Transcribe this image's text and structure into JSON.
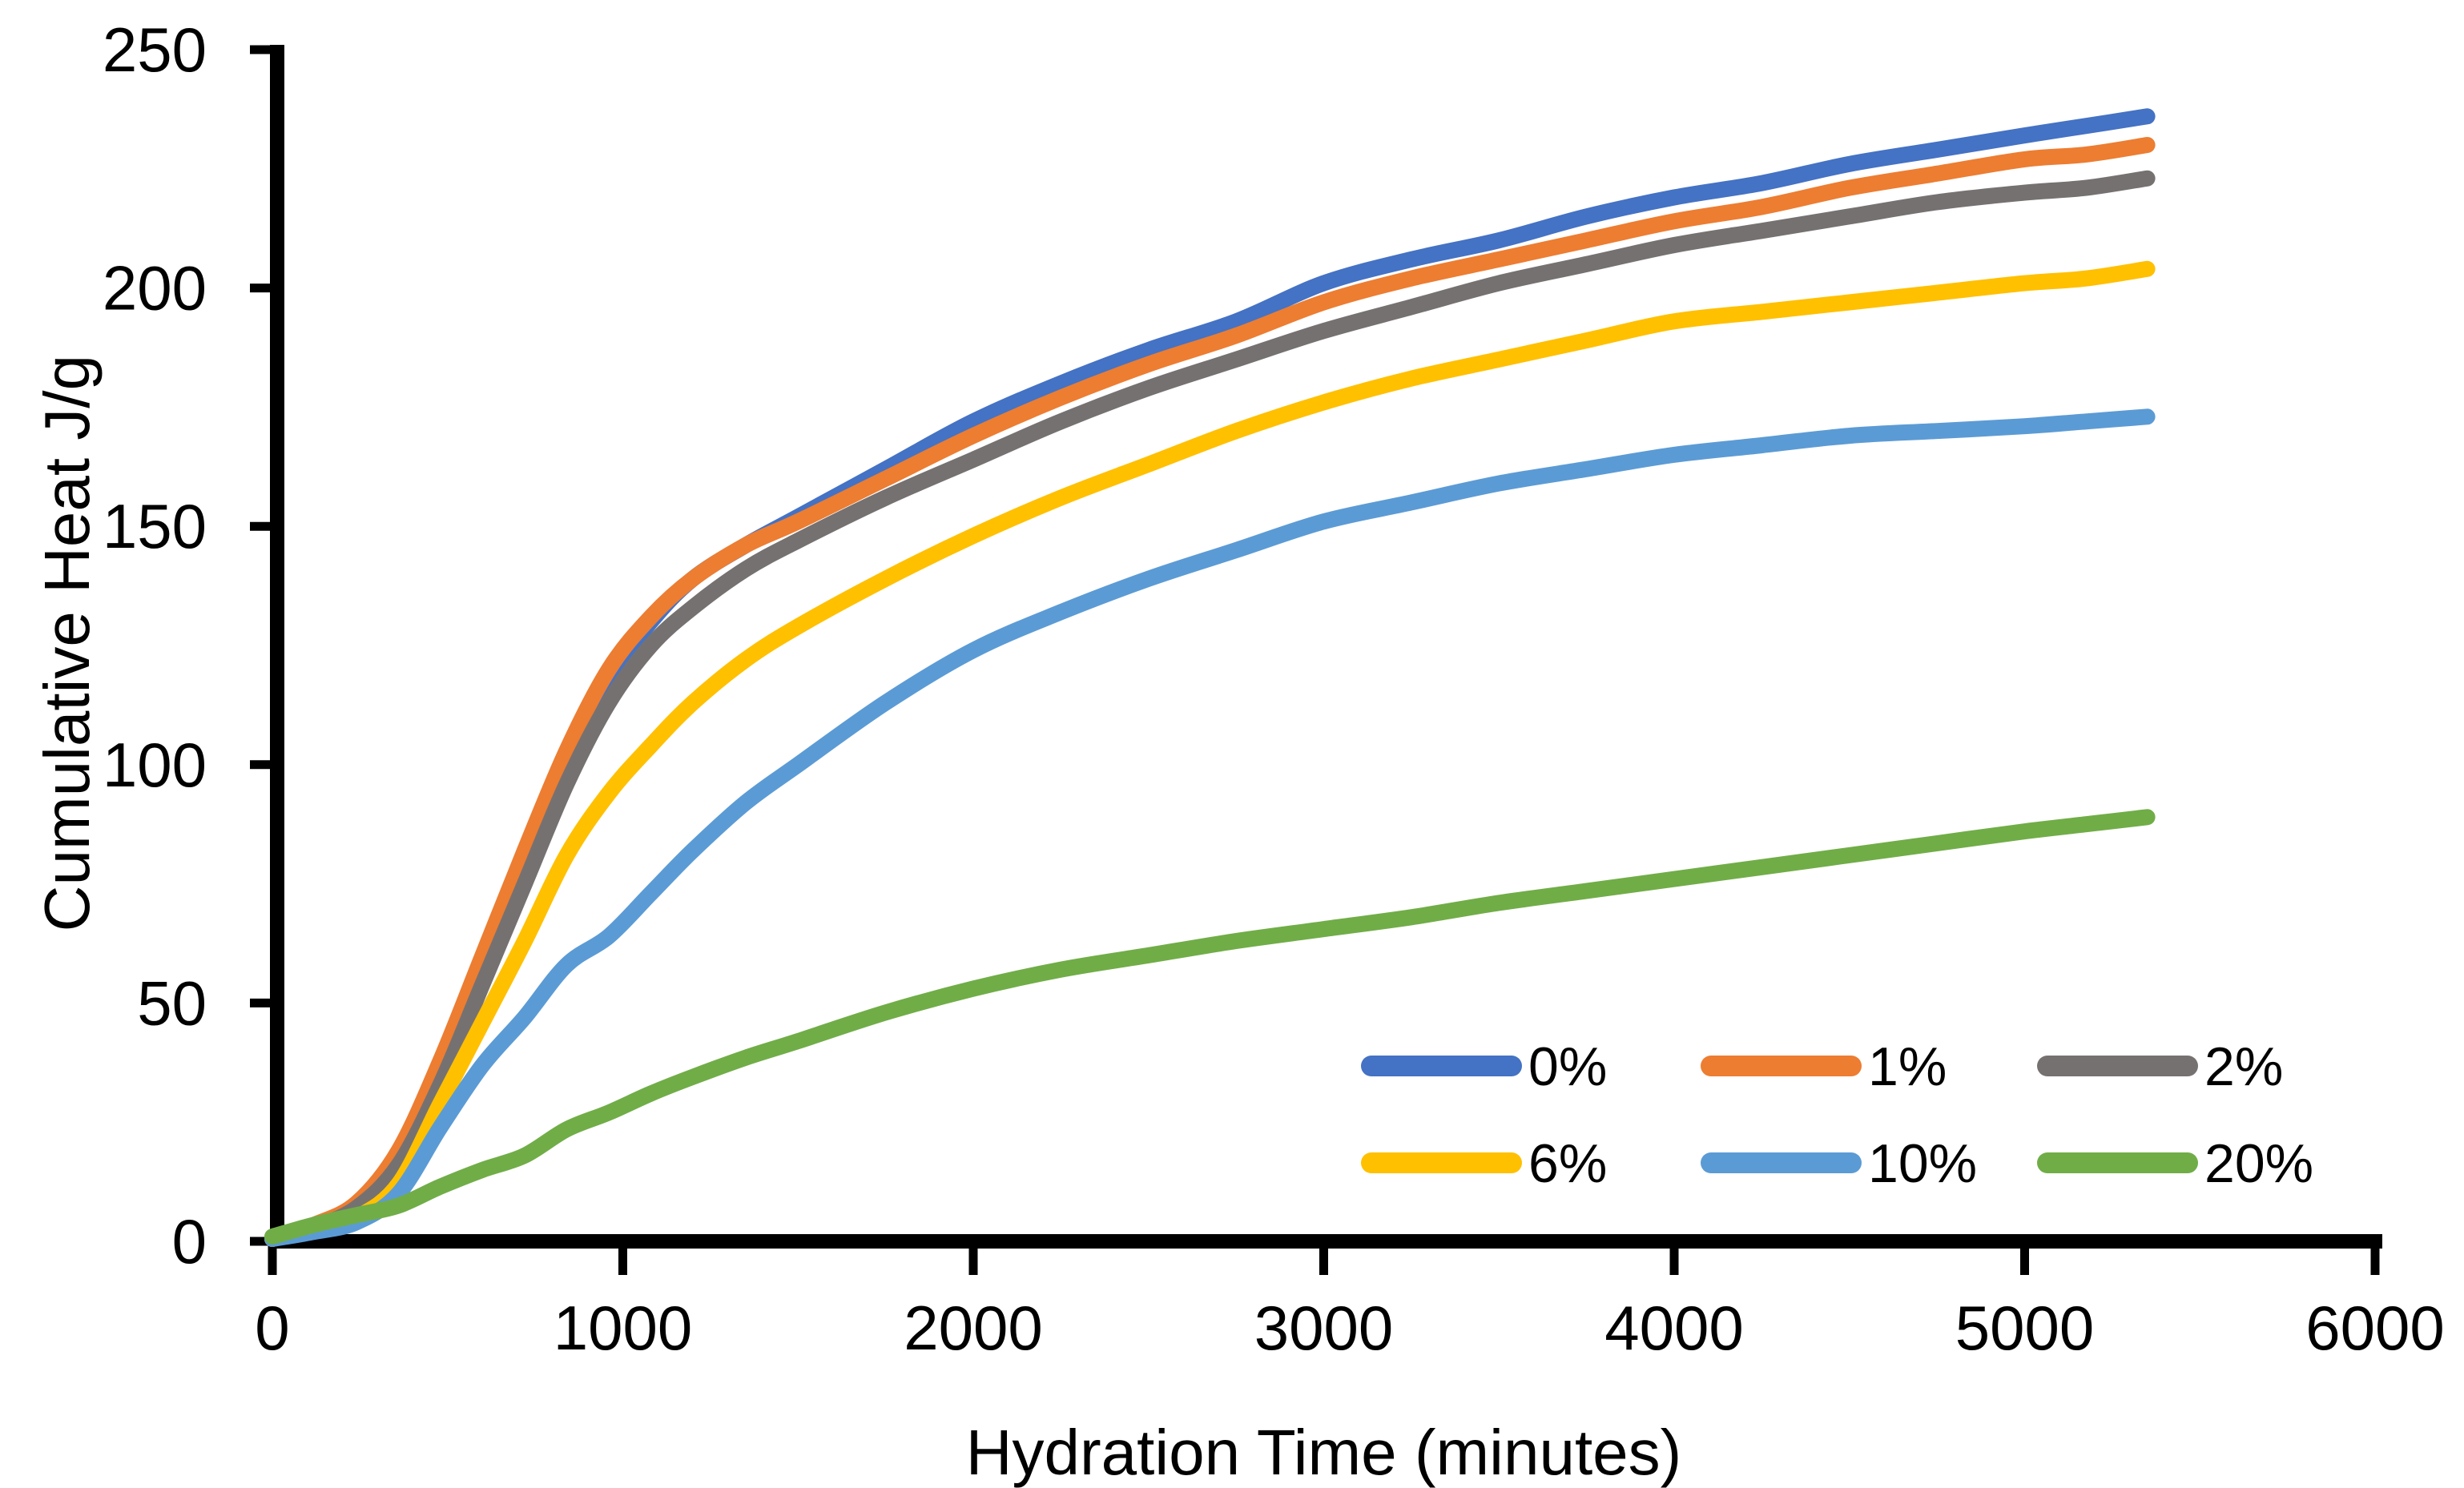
{
  "page": {
    "background": "#FFFFFF",
    "description": "Isothermal calorimetry cumulative heat curves for cement pastes with different replacement percentages"
  },
  "chart": {
    "x_axis": {
      "title": "Hydration Time (minutes)",
      "min": 0,
      "max": 6000,
      "ticks": [
        "0",
        "1000",
        "2000",
        "3000",
        "4000",
        "5000",
        "6000"
      ]
    },
    "y_axis": {
      "title": "Cumulative Heat J/g",
      "min": 0,
      "max": 250,
      "ticks": [
        "0",
        "50",
        "100",
        "150",
        "200",
        "250"
      ]
    },
    "legend": [
      {
        "label": "0%",
        "color": "#4472C4"
      },
      {
        "label": "1%",
        "color": "#ED7D31"
      },
      {
        "label": "2%",
        "color": "#767171"
      },
      {
        "label": "6%",
        "color": "#FFC000"
      },
      {
        "label": "10%",
        "color": "#5B9BD5"
      },
      {
        "label": "20%",
        "color": "#70AD47"
      }
    ],
    "axis_color": "#000000"
  },
  "chart_data": {
    "type": "line",
    "title": "",
    "xlabel": "Hydration Time (minutes)",
    "ylabel": "Cumulative Heat J/g",
    "xlim": [
      0,
      6000
    ],
    "ylim": [
      0,
      250
    ],
    "grid": false,
    "legend_position": "inside-lower-right",
    "x": [
      0,
      120,
      240,
      360,
      480,
      600,
      720,
      840,
      960,
      1080,
      1200,
      1350,
      1500,
      1750,
      2000,
      2250,
      2500,
      2750,
      3000,
      3250,
      3500,
      3750,
      4000,
      4250,
      4500,
      4750,
      5000,
      5175,
      5350
    ],
    "series": [
      {
        "name": "0%",
        "color": "#4472C4",
        "values": [
          0.5,
          3,
          7,
          17,
          34,
          57,
          79,
          100,
          118,
          130,
          139,
          146,
          152,
          162,
          172,
          180,
          187,
          193,
          201,
          206,
          210,
          215,
          219,
          222,
          226,
          229,
          232,
          234,
          236
        ]
      },
      {
        "name": "1%",
        "color": "#ED7D31",
        "values": [
          0.5,
          3.5,
          8,
          19,
          38,
          60,
          82,
          103,
          120,
          131,
          139,
          146,
          151,
          160,
          169,
          177,
          184,
          190,
          197,
          202,
          206,
          210,
          214,
          217,
          221,
          224,
          227,
          228,
          230
        ]
      },
      {
        "name": "2%",
        "color": "#767171",
        "values": [
          0.5,
          3,
          7,
          16,
          33,
          54,
          75,
          96,
          113,
          125,
          133,
          141,
          147,
          156,
          164,
          172,
          179,
          185,
          191,
          196,
          201,
          205,
          209,
          212,
          215,
          218,
          220,
          221,
          223
        ]
      },
      {
        "name": "6%",
        "color": "#FFC000",
        "values": [
          0.5,
          2.5,
          5,
          12,
          29,
          46,
          63,
          81,
          94,
          104,
          113,
          122,
          129,
          139,
          148,
          156,
          163,
          170,
          176,
          181,
          185,
          189,
          193,
          195,
          197,
          199,
          201,
          202,
          204
        ]
      },
      {
        "name": "10%",
        "color": "#5B9BD5",
        "values": [
          0.5,
          2,
          4,
          10,
          24,
          37,
          47,
          58,
          64,
          73,
          82,
          92,
          100,
          113,
          124,
          132,
          139,
          145,
          151,
          155,
          159,
          162,
          165,
          167,
          169,
          170,
          171,
          172,
          173
        ]
      },
      {
        "name": "20%",
        "color": "#70AD47",
        "values": [
          1,
          3.5,
          5.5,
          7.5,
          11.5,
          15,
          18,
          23.5,
          27,
          31,
          34.5,
          38.5,
          42,
          48,
          53,
          57,
          60,
          63,
          65.5,
          68,
          71,
          73.5,
          76,
          78.5,
          81,
          83.5,
          86,
          87.5,
          89
        ]
      }
    ]
  }
}
